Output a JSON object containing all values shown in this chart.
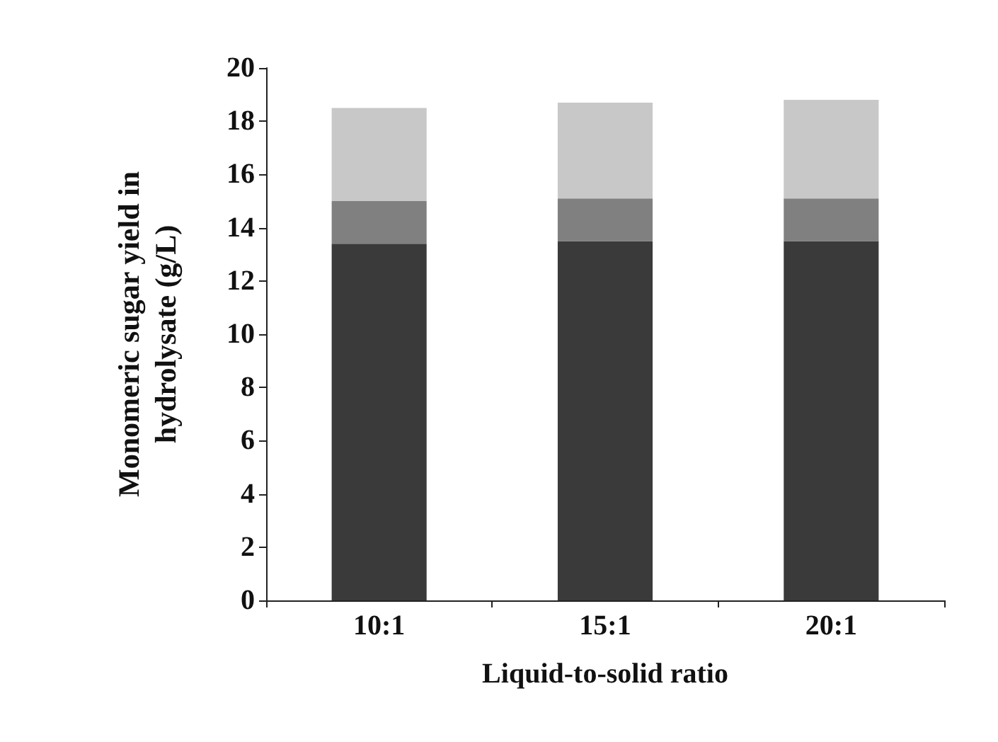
{
  "chart_data": {
    "type": "bar",
    "stacked": true,
    "xlabel": "Liquid-to-solid ratio",
    "ylabel": "Monomeric sugar yield in\nhydrolysate (g/L)",
    "categories": [
      "10:1",
      "15:1",
      "20:1"
    ],
    "series": [
      {
        "color": "#3a3a3a",
        "values": [
          13.4,
          13.5,
          13.5
        ]
      },
      {
        "color": "#808080",
        "values": [
          1.6,
          1.6,
          1.6
        ]
      },
      {
        "color": "#c8c8c8",
        "values": [
          3.5,
          3.6,
          3.7
        ]
      }
    ],
    "ylim": [
      0,
      20
    ],
    "yticks": [
      0,
      2,
      4,
      6,
      8,
      10,
      12,
      14,
      16,
      18,
      20
    ],
    "grid": false
  }
}
